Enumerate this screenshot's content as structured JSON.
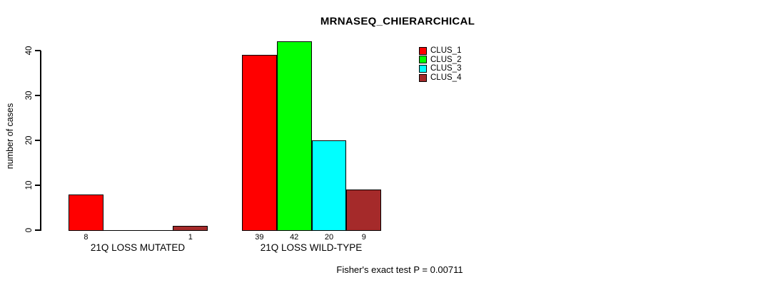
{
  "chart_data": {
    "type": "bar",
    "title": "MRNASEQ_CHIERARCHICAL",
    "ylabel": "number of cases",
    "ylim": [
      0,
      40
    ],
    "yticks": [
      0,
      10,
      20,
      30,
      40
    ],
    "grid": false,
    "legend_position": "top-right-inside",
    "series": [
      {
        "name": "CLUS_1",
        "color": "#FF0000"
      },
      {
        "name": "CLUS_2",
        "color": "#00FF00"
      },
      {
        "name": "CLUS_3",
        "color": "#00FFFF"
      },
      {
        "name": "CLUS_4",
        "color": "#A52A2A"
      }
    ],
    "groups": [
      {
        "label": "21Q LOSS MUTATED",
        "values": [
          8,
          0,
          0,
          1
        ]
      },
      {
        "label": "21Q LOSS WILD-TYPE",
        "values": [
          39,
          42,
          20,
          9
        ]
      }
    ],
    "bar_value_labels_shown_for_nonzero_only": true,
    "footnote": "Fisher's exact test P = 0.00711"
  }
}
